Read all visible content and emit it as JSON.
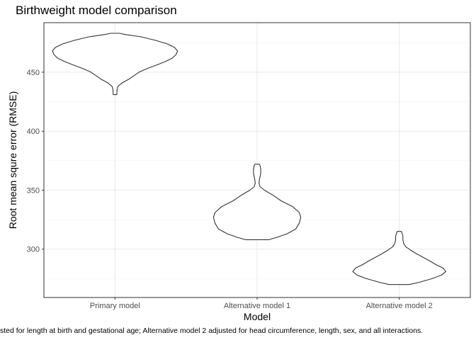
{
  "chart_data": {
    "type": "violin",
    "title": "Birthweight model comparison",
    "xlabel": "Model",
    "ylabel": "Root mean squre error (RMSE)",
    "caption": "sted for length at birth and gestational age; Alternative model 2 adjusted for head circumference, length, sex, and all interactions.",
    "categories": [
      "Primary model",
      "Alternative model 1",
      "Alternative model 2"
    ],
    "ylim": [
      259,
      492
    ],
    "yticks": [
      300,
      350,
      400,
      450
    ],
    "grid": true,
    "colors": {
      "panel_border": "#333333",
      "grid_major": "#ebebeb",
      "grid_minor": "#f5f5f5",
      "outline": "#333333"
    },
    "series": [
      {
        "category": "Primary model",
        "min": 431,
        "max": 483,
        "profile": [
          [
            431,
            2.5
          ],
          [
            435,
            2.8
          ],
          [
            438,
            4
          ],
          [
            441,
            10
          ],
          [
            444,
            19
          ],
          [
            447,
            26
          ],
          [
            450,
            33
          ],
          [
            453,
            44
          ],
          [
            456,
            57
          ],
          [
            459,
            69
          ],
          [
            462,
            79
          ],
          [
            465,
            84
          ],
          [
            468,
            86
          ],
          [
            471,
            82
          ],
          [
            474,
            72
          ],
          [
            477,
            56
          ],
          [
            480,
            36
          ],
          [
            482,
            14
          ],
          [
            483,
            6
          ]
        ]
      },
      {
        "category": "Alternative model 1",
        "min": 308,
        "max": 372,
        "profile": [
          [
            308,
            16
          ],
          [
            310,
            27
          ],
          [
            313,
            41
          ],
          [
            317,
            53
          ],
          [
            322,
            58
          ],
          [
            327,
            60
          ],
          [
            331,
            58
          ],
          [
            336,
            49
          ],
          [
            341,
            33
          ],
          [
            346,
            21
          ],
          [
            350,
            10
          ],
          [
            353,
            4
          ],
          [
            356,
            2.5
          ],
          [
            360,
            3.5
          ],
          [
            364,
            5
          ],
          [
            368,
            5
          ],
          [
            371,
            4
          ],
          [
            372,
            3
          ]
        ]
      },
      {
        "category": "Alternative model 2",
        "min": 270,
        "max": 315,
        "profile": [
          [
            270,
            14
          ],
          [
            272,
            28
          ],
          [
            275,
            45
          ],
          [
            278,
            58
          ],
          [
            281,
            64
          ],
          [
            284,
            60
          ],
          [
            287,
            50
          ],
          [
            290,
            42
          ],
          [
            293,
            33
          ],
          [
            296,
            24
          ],
          [
            299,
            16
          ],
          [
            302,
            9
          ],
          [
            305,
            6
          ],
          [
            308,
            5
          ],
          [
            311,
            5
          ],
          [
            313,
            4
          ],
          [
            315,
            3
          ]
        ]
      }
    ]
  }
}
